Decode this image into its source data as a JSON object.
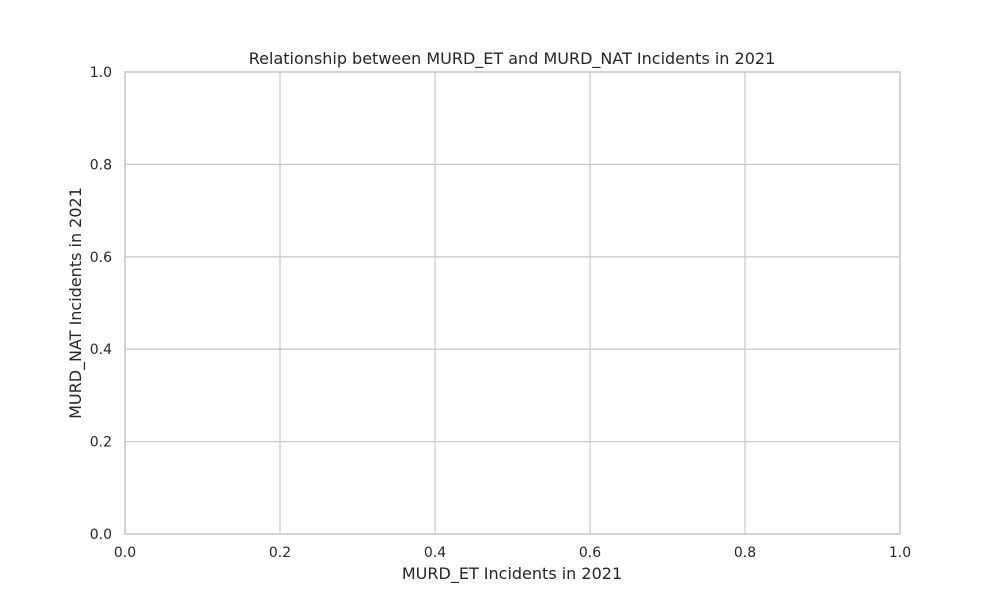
{
  "chart_data": {
    "type": "scatter",
    "title": "Relationship between MURD_ET and MURD_NAT Incidents in 2021",
    "xlabel": "MURD_ET Incidents in 2021",
    "ylabel": "MURD_NAT Incidents in 2021",
    "xlim": [
      0,
      1
    ],
    "ylim": [
      0,
      1
    ],
    "x_ticks": [
      "0.0",
      "0.2",
      "0.4",
      "0.6",
      "0.8",
      "1.0"
    ],
    "y_ticks": [
      "0.0",
      "0.2",
      "0.4",
      "0.6",
      "0.8",
      "1.0"
    ],
    "grid": true,
    "points": [],
    "colors": {
      "background": "#ffffff",
      "grid": "#cccccc",
      "frame": "#cccccc",
      "text": "#262626"
    }
  }
}
